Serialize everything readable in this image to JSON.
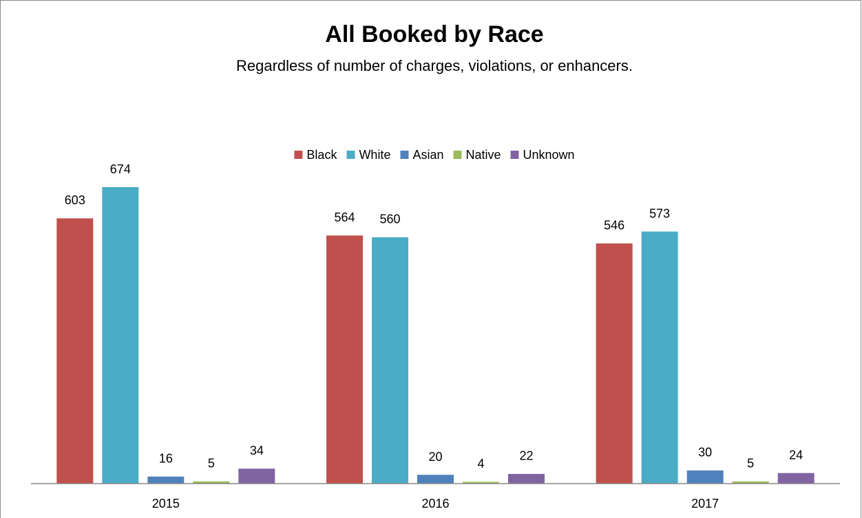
{
  "chart_data": {
    "type": "bar",
    "title": "All Booked by Race",
    "subtitle": "Regardless of number of charges, violations, or enhancers.",
    "categories": [
      "2015",
      "2016",
      "2017"
    ],
    "series": [
      {
        "name": "Black",
        "color": "#c0504d",
        "values": [
          603,
          564,
          546
        ]
      },
      {
        "name": "White",
        "color": "#4bacc6",
        "values": [
          674,
          560,
          573
        ]
      },
      {
        "name": "Asian",
        "color": "#4f81bd",
        "values": [
          16,
          20,
          30
        ]
      },
      {
        "name": "Native",
        "color": "#9bbb59",
        "values": [
          5,
          4,
          5
        ]
      },
      {
        "name": "Unknown",
        "color": "#8064a2",
        "values": [
          34,
          22,
          24
        ]
      }
    ],
    "legend": "top",
    "grid": false
  }
}
